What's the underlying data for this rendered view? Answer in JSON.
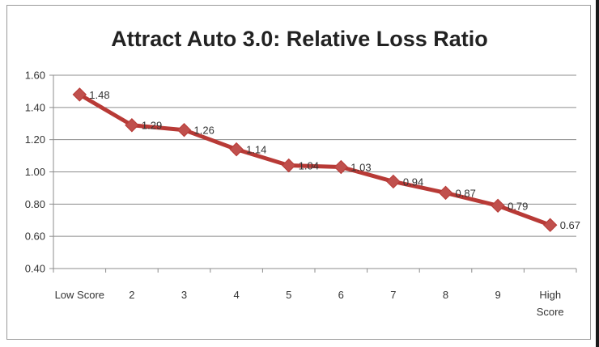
{
  "chart_data": {
    "type": "line",
    "title": "Attract Auto 3.0: Relative Loss Ratio",
    "categories": [
      [
        "Low Score"
      ],
      [
        "2"
      ],
      [
        "3"
      ],
      [
        "4"
      ],
      [
        "5"
      ],
      [
        "6"
      ],
      [
        "7"
      ],
      [
        "8"
      ],
      [
        "9"
      ],
      [
        "High",
        "Score"
      ]
    ],
    "series": [
      {
        "name": "Relative Loss Ratio",
        "values": [
          1.48,
          1.29,
          1.26,
          1.14,
          1.04,
          1.03,
          0.94,
          0.87,
          0.79,
          0.67
        ],
        "labels": [
          "1.48",
          "1.29",
          "1.26",
          "1.14",
          "1.04",
          "1.03",
          "0.94",
          "0.87",
          "0.79",
          "0.67"
        ]
      }
    ],
    "ylim": [
      0.4,
      1.6
    ],
    "yticks": [
      "0.40",
      "0.60",
      "0.80",
      "1.00",
      "1.20",
      "1.40",
      "1.60"
    ],
    "xlabel": "",
    "ylabel": "",
    "grid": true,
    "legend": "none",
    "colors": {
      "line": "#b83a36",
      "marker": "#c0504d",
      "grid": "#8c8c8c",
      "axis": "#8c8c8c"
    }
  }
}
